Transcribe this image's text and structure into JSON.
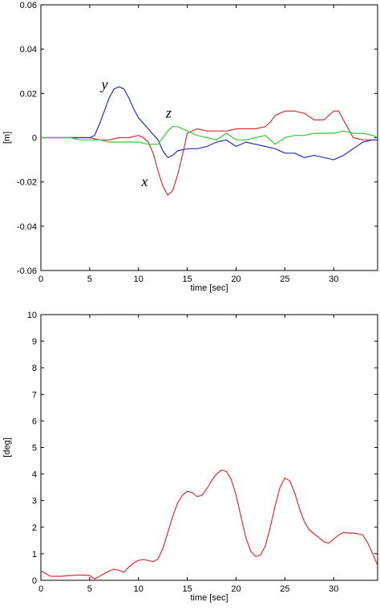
{
  "chart_data": [
    {
      "type": "line",
      "xlabel": "time [sec]",
      "ylabel": "[m]",
      "xlim": [
        0,
        34.5
      ],
      "ylim": [
        -0.06,
        0.06
      ],
      "xticks": [
        0,
        5,
        10,
        15,
        20,
        25,
        30
      ],
      "yticks": [
        -0.06,
        -0.04,
        -0.02,
        0,
        0.02,
        0.04,
        0.06
      ],
      "ytick_labels": [
        "-0.06",
        "-0.04",
        "-0.02",
        "0",
        "0.02",
        "0.04",
        "0.06"
      ],
      "grid": false,
      "series": [
        {
          "name": "x",
          "color": "#d93030",
          "x": [
            0,
            1,
            2,
            3,
            4,
            5,
            6,
            7,
            8,
            9,
            10,
            10.5,
            11,
            11.5,
            12,
            12.5,
            13,
            13.5,
            14,
            14.5,
            15,
            16,
            17,
            18,
            19,
            20,
            21,
            22,
            23,
            23.5,
            24,
            25,
            26,
            27,
            28,
            29,
            30,
            30.5,
            31,
            32,
            33,
            34,
            34.5
          ],
          "y": [
            0.0,
            0.0,
            0.0,
            0.0,
            0.0,
            0.0,
            -0.001,
            -0.001,
            0.0,
            0.0,
            0.001,
            0.0,
            -0.002,
            -0.007,
            -0.015,
            -0.022,
            -0.026,
            -0.024,
            -0.017,
            -0.008,
            0.002,
            0.004,
            0.003,
            0.003,
            0.003,
            0.004,
            0.004,
            0.004,
            0.005,
            0.007,
            0.01,
            0.012,
            0.012,
            0.011,
            0.008,
            0.008,
            0.012,
            0.012,
            0.008,
            0.0,
            -0.001,
            -0.001,
            -0.001
          ]
        },
        {
          "name": "y",
          "color": "#2233bb",
          "x": [
            0,
            1,
            2,
            3,
            4,
            5,
            5.5,
            6,
            6.5,
            7,
            7.5,
            8,
            8.5,
            9,
            9.5,
            10,
            11,
            12,
            12.5,
            13,
            13.5,
            14,
            15,
            16,
            17,
            18,
            19,
            20,
            21,
            22,
            23,
            24,
            25,
            26,
            27,
            28,
            29,
            30,
            31,
            32,
            33,
            34,
            34.5
          ],
          "y": [
            0.0,
            0.0,
            0.0,
            0.0,
            0.0,
            0.0,
            0.001,
            0.006,
            0.012,
            0.018,
            0.022,
            0.023,
            0.022,
            0.018,
            0.013,
            0.009,
            0.004,
            -0.001,
            -0.006,
            -0.009,
            -0.008,
            -0.006,
            -0.005,
            -0.005,
            -0.004,
            -0.002,
            -0.001,
            -0.004,
            -0.002,
            -0.003,
            -0.004,
            -0.005,
            -0.007,
            -0.007,
            -0.009,
            -0.008,
            -0.009,
            -0.01,
            -0.008,
            -0.005,
            -0.002,
            -0.001,
            -0.001
          ]
        },
        {
          "name": "z",
          "color": "#33cc33",
          "x": [
            0,
            1,
            2,
            3,
            4,
            5,
            6,
            7,
            8,
            9,
            10,
            11,
            12,
            12.5,
            13,
            13.5,
            14,
            15,
            16,
            17,
            18,
            19,
            20,
            21,
            22,
            23,
            24,
            25,
            26,
            27,
            28,
            29,
            30,
            31,
            32,
            33,
            34,
            34.5
          ],
          "y": [
            0.0,
            0.0,
            0.0,
            0.0,
            -0.001,
            -0.001,
            -0.001,
            -0.002,
            -0.002,
            -0.002,
            -0.002,
            -0.003,
            -0.003,
            0.0,
            0.003,
            0.005,
            0.005,
            0.003,
            0.001,
            0.0,
            -0.001,
            0.002,
            -0.001,
            -0.001,
            0.0,
            0.001,
            -0.003,
            0.0,
            0.001,
            0.001,
            0.002,
            0.002,
            0.002,
            0.003,
            0.002,
            0.002,
            0.001,
            0.0
          ]
        }
      ],
      "annotations": [
        {
          "text": "y",
          "x": 6.2,
          "y": 0.022
        },
        {
          "text": "z",
          "x": 12.8,
          "y": 0.009
        },
        {
          "text": "x",
          "x": 10.3,
          "y": -0.022
        }
      ]
    },
    {
      "type": "line",
      "xlabel": "time [sec]",
      "ylabel": "[deg]",
      "xlim": [
        0,
        34.5
      ],
      "ylim": [
        0,
        10
      ],
      "xticks": [
        0,
        5,
        10,
        15,
        20,
        25,
        30
      ],
      "yticks": [
        0,
        1,
        2,
        3,
        4,
        5,
        6,
        7,
        8,
        9,
        10
      ],
      "ytick_labels": [
        "0",
        "1",
        "2",
        "3",
        "4",
        "5",
        "6",
        "7",
        "8",
        "9",
        "10"
      ],
      "grid": false,
      "series": [
        {
          "color": "#d93030",
          "x": [
            0,
            0.5,
            1,
            2,
            3,
            4,
            5,
            5.5,
            6,
            6.5,
            7,
            7.5,
            8,
            8.5,
            9,
            9.5,
            10,
            10.5,
            11,
            11.5,
            12,
            12.5,
            13,
            13.5,
            14,
            14.5,
            15,
            15.5,
            16,
            16.5,
            17,
            17.5,
            18,
            18.5,
            19,
            19.5,
            20,
            20.5,
            21,
            21.5,
            22,
            22.5,
            23,
            23.5,
            24,
            24.5,
            25,
            25.5,
            26,
            26.5,
            27,
            27.5,
            28,
            28.5,
            29,
            29.5,
            30,
            30.5,
            31,
            31.5,
            32,
            32.5,
            33,
            33.5,
            34,
            34.5
          ],
          "y": [
            0.35,
            0.25,
            0.15,
            0.15,
            0.18,
            0.2,
            0.18,
            0.05,
            0.15,
            0.25,
            0.35,
            0.42,
            0.38,
            0.3,
            0.5,
            0.65,
            0.75,
            0.78,
            0.75,
            0.7,
            0.8,
            1.2,
            1.8,
            2.4,
            2.9,
            3.2,
            3.35,
            3.3,
            3.15,
            3.2,
            3.45,
            3.75,
            4.0,
            4.15,
            4.1,
            3.8,
            3.2,
            2.4,
            1.6,
            1.1,
            0.9,
            0.95,
            1.3,
            2.0,
            2.8,
            3.5,
            3.85,
            3.75,
            3.3,
            2.7,
            2.2,
            1.9,
            1.75,
            1.6,
            1.45,
            1.4,
            1.55,
            1.7,
            1.8,
            1.78,
            1.78,
            1.75,
            1.7,
            1.4,
            1.0,
            0.55
          ]
        }
      ]
    }
  ]
}
